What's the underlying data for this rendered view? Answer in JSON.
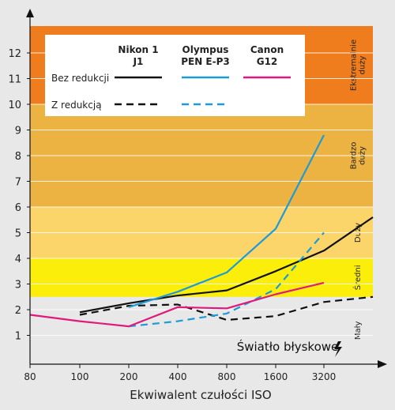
{
  "chart_data": {
    "type": "line",
    "title": "Światło błyskowe",
    "xlabel": "Ekwiwalent czułości ISO",
    "ylabel": "",
    "x_ticks": [
      "80",
      "100",
      "200",
      "400",
      "800",
      "1600",
      "3200"
    ],
    "ylim": [
      0,
      13
    ],
    "y_ticks": [
      1,
      2,
      3,
      4,
      5,
      6,
      7,
      8,
      9,
      10,
      11,
      12
    ],
    "bands": [
      {
        "label": "Mały",
        "from": 0,
        "to": 2.5,
        "color": "#e8e8e8"
      },
      {
        "label": "Średni",
        "from": 2.5,
        "to": 4,
        "color": "#fbee0b"
      },
      {
        "label": "Duży",
        "from": 4,
        "to": 6,
        "color": "#fbd46a"
      },
      {
        "label": "Bardzo duży",
        "from": 6,
        "to": 10,
        "color": "#ecb342"
      },
      {
        "label": "Ekstremalnie duży",
        "from": 10,
        "to": 13,
        "color": "#ef7d1d"
      }
    ],
    "legend": {
      "row_labels": [
        "Bez redukcji",
        "Z redukcją"
      ],
      "columns": [
        {
          "title": [
            "Nikon 1",
            "J1"
          ],
          "color": "#111111"
        },
        {
          "title": [
            "Olympus",
            "PEN E-P3"
          ],
          "color": "#1e9ad6"
        },
        {
          "title": [
            "Canon",
            "G12"
          ],
          "color": "#e0197d"
        }
      ]
    },
    "series": [
      {
        "camera": "Nikon 1 J1",
        "mode": "Bez redukcji",
        "color": "#111111",
        "dashed": false,
        "x": [
          1,
          2,
          3,
          4,
          5,
          6,
          7
        ],
        "values": [
          1.9,
          2.25,
          2.55,
          2.75,
          3.5,
          4.3,
          5.6
        ]
      },
      {
        "camera": "Nikon 1 J1",
        "mode": "Z redukcją",
        "color": "#111111",
        "dashed": true,
        "x": [
          1,
          2,
          3,
          4,
          5,
          6,
          7
        ],
        "values": [
          1.8,
          2.15,
          2.2,
          1.6,
          1.75,
          2.3,
          2.5
        ]
      },
      {
        "camera": "Olympus PEN E-P3",
        "mode": "Bez redukcji",
        "color": "#1e9ad6",
        "dashed": false,
        "x": [
          2,
          3,
          4,
          5,
          6
        ],
        "values": [
          2.1,
          2.7,
          3.45,
          5.15,
          8.8
        ]
      },
      {
        "camera": "Olympus PEN E-P3",
        "mode": "Z redukcją",
        "color": "#1e9ad6",
        "dashed": true,
        "x": [
          2,
          3,
          4,
          5,
          6
        ],
        "values": [
          1.35,
          1.55,
          1.85,
          2.8,
          5.0
        ]
      },
      {
        "camera": "Canon G12",
        "mode": "Bez redukcji",
        "color": "#e0197d",
        "dashed": false,
        "x": [
          0,
          1,
          2,
          3,
          4,
          5,
          6
        ],
        "values": [
          1.8,
          1.55,
          1.35,
          2.1,
          2.05,
          2.6,
          3.05
        ]
      }
    ]
  }
}
